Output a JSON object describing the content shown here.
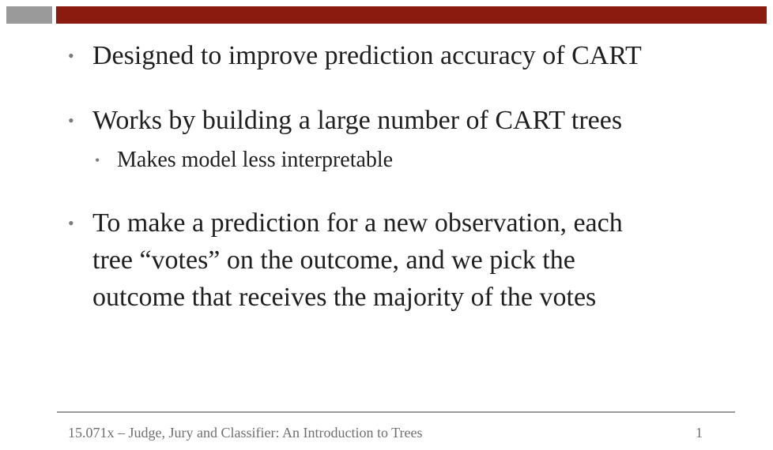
{
  "slide": {
    "bullets": [
      {
        "marker": "•",
        "text": "Designed to improve prediction accuracy of CART"
      },
      {
        "marker": "•",
        "text": "Works by building a large number of CART trees",
        "sub": {
          "marker": "•",
          "text": "Makes model less interpretable"
        }
      },
      {
        "marker": "•",
        "lines": [
          "To make a prediction for a new observation, each",
          "tree “votes” on the outcome, and we pick the",
          "outcome that receives the majority of the votes"
        ]
      }
    ]
  },
  "footer": {
    "text": "15.071x – Judge, Jury and Classifier: An Introduction to Trees",
    "page_number": "1"
  },
  "colors": {
    "header_gray": "#9a9a9a",
    "header_red": "#8b1a0f",
    "divider": "#9b9b9b",
    "text": "#1f1f1f",
    "footer_text": "#6f6f6f"
  }
}
